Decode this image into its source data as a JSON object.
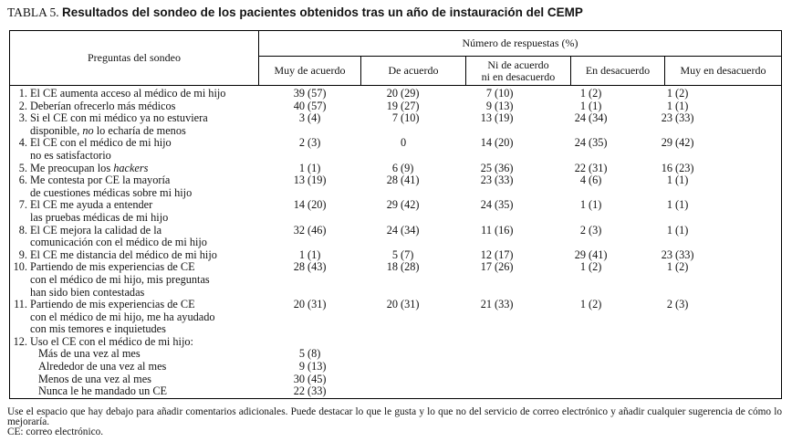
{
  "title": {
    "label": "TABLA 5.",
    "text": "Resultados del sondeo de los pacientes obtenidos tras un año de instauración del CEMP"
  },
  "table": {
    "questions_header": "Preguntas del sondeo",
    "responses_header": "Número de respuestas (%)",
    "columns": [
      "Muy de acuerdo",
      "De acuerdo",
      "Ni de acuerdo\nni en desacuerdo",
      "En desacuerdo",
      "Muy en desacuerdo"
    ],
    "rows": [
      {
        "num": "1.",
        "lines": [
          [
            "El CE aumenta acceso al médico de mi hijo"
          ]
        ],
        "values": [
          "39 (57)",
          "20 (29)",
          "7 (10)",
          "1 (2)",
          "1 (2)"
        ]
      },
      {
        "num": "2.",
        "lines": [
          [
            "Deberían ofrecerlo más médicos"
          ]
        ],
        "values": [
          "40 (57)",
          "19 (27)",
          "9 (13)",
          "1 (1)",
          "1 (1)"
        ]
      },
      {
        "num": "3.",
        "lines": [
          [
            "Si el CE con mi médico ya no estuviera"
          ],
          [
            "disponible, ",
            {
              "i": "no"
            },
            " lo echaría de menos"
          ]
        ],
        "values": [
          "3 (4)",
          "7 (10)",
          "13 (19)",
          "24 (34)",
          "23 (33)"
        ]
      },
      {
        "num": "4.",
        "lines": [
          [
            "El CE con el médico de mi hijo"
          ],
          [
            "no es satisfactorio"
          ]
        ],
        "values": [
          "2 (3)",
          "0",
          "14 (20)",
          "24 (35)",
          "29 (42)"
        ]
      },
      {
        "num": "5.",
        "lines": [
          [
            "Me preocupan los ",
            {
              "i": "hackers"
            }
          ]
        ],
        "values": [
          "1 (1)",
          "6 (9)",
          "25 (36)",
          "22 (31)",
          "16 (23)"
        ]
      },
      {
        "num": "6.",
        "lines": [
          [
            "Me contesta por CE la mayoría"
          ],
          [
            "de cuestiones médicas sobre mi hijo"
          ]
        ],
        "values": [
          "13 (19)",
          "28 (41)",
          "23 (33)",
          "4 (6)",
          "1 (1)"
        ]
      },
      {
        "num": "7.",
        "lines": [
          [
            "El CE me ayuda a entender"
          ],
          [
            "las pruebas médicas de mi hijo"
          ]
        ],
        "values": [
          "14 (20)",
          "29 (42)",
          "24 (35)",
          "1 (1)",
          "1 (1)"
        ]
      },
      {
        "num": "8.",
        "lines": [
          [
            "El CE mejora la calidad de la"
          ],
          [
            "comunicación con el médico de mi hijo"
          ]
        ],
        "values": [
          "32 (46)",
          "24 (34)",
          "11 (16)",
          "2 (3)",
          "1 (1)"
        ]
      },
      {
        "num": "9.",
        "lines": [
          [
            "El CE me distancia del médico de mi hijo"
          ]
        ],
        "values": [
          "1 (1)",
          "5 (7)",
          "12 (17)",
          "29 (41)",
          "23 (33)"
        ]
      },
      {
        "num": "10.",
        "lines": [
          [
            "Partiendo de mis experiencias de CE"
          ],
          [
            "con el médico de mi hijo, mis preguntas"
          ],
          [
            "han sido bien contestadas"
          ]
        ],
        "values": [
          "28 (43)",
          "18 (28)",
          "17 (26)",
          "1 (2)",
          "1 (2)"
        ]
      },
      {
        "num": "11.",
        "lines": [
          [
            "Partiendo de mis experiencias de CE"
          ],
          [
            "con el médico de mi hijo, me ha ayudado"
          ],
          [
            "con mis temores e inquietudes"
          ]
        ],
        "values": [
          "20 (31)",
          "20 (31)",
          "21 (33)",
          "1 (2)",
          "2 (3)"
        ]
      },
      {
        "num": "12.",
        "lines": [
          [
            "Uso el CE con el médico de mi hijo:"
          ]
        ],
        "values": [
          "",
          "",
          "",
          "",
          ""
        ]
      },
      {
        "num": "",
        "indent": true,
        "lines": [
          [
            "Más de una vez al mes"
          ]
        ],
        "values": [
          "5 (8)",
          "",
          "",
          "",
          ""
        ]
      },
      {
        "num": "",
        "indent": true,
        "lines": [
          [
            "Alrededor de una vez al mes"
          ]
        ],
        "values": [
          "9 (13)",
          "",
          "",
          "",
          ""
        ]
      },
      {
        "num": "",
        "indent": true,
        "lines": [
          [
            "Menos de una vez al mes"
          ]
        ],
        "values": [
          "30 (45)",
          "",
          "",
          "",
          ""
        ]
      },
      {
        "num": "",
        "indent": true,
        "lines": [
          [
            "Nunca le he mandado un CE"
          ]
        ],
        "values": [
          "22 (33)",
          "",
          "",
          "",
          ""
        ]
      }
    ]
  },
  "footnotes": [
    "Use el espacio que hay debajo para añadir comentarios adicionales. Puede destacar lo que le gusta y lo que no del servicio de correo electrónico y añadir cualquier sugerencia de cómo lo mejoraría.",
    "CE: correo electrónico."
  ]
}
